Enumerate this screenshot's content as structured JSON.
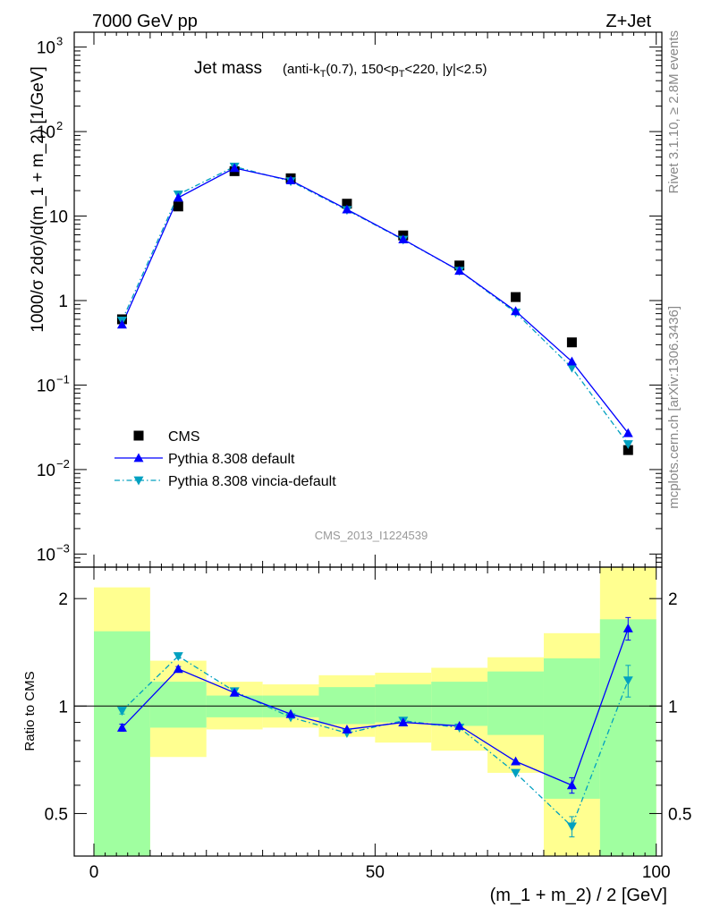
{
  "header": {
    "left": "7000 GeV pp",
    "right": "Z+Jet"
  },
  "side_text": {
    "rivet": "Rivet 3.1.10, ≥ 2.8M events",
    "mcplots": "mcplots.cern.ch [arXiv:1306.3436]"
  },
  "watermark": "CMS_2013_I1224539",
  "main_panel": {
    "title_main": "Jet mass",
    "title_sub": "(anti-k_T(0.7), 150<p_T<220, |y|<2.5)",
    "ylabel": "1000/σ 2dσ)/d(m_1 + m_2) [1/GeV]",
    "y_ticks": [
      {
        "value": 0.001,
        "label": "10",
        "exp": "−3"
      },
      {
        "value": 0.01,
        "label": "10",
        "exp": "−2"
      },
      {
        "value": 0.1,
        "label": "10",
        "exp": "−1"
      },
      {
        "value": 1,
        "label": "1",
        "exp": ""
      },
      {
        "value": 10,
        "label": "10",
        "exp": ""
      },
      {
        "value": 100,
        "label": "10",
        "exp": "2"
      },
      {
        "value": 1000,
        "label": "10",
        "exp": "3"
      }
    ]
  },
  "ratio_panel": {
    "ylabel": "Ratio to CMS",
    "y_ticks": [
      {
        "value": 0.5,
        "label": "0.5"
      },
      {
        "value": 1,
        "label": "1"
      },
      {
        "value": 2,
        "label": "2"
      }
    ]
  },
  "legend": [
    {
      "name": "CMS",
      "marker": "square",
      "color": "#000000"
    },
    {
      "name": "Pythia 8.308 default",
      "marker": "triangle-up",
      "color": "#0000ff"
    },
    {
      "name": "Pythia 8.308 vincia-default",
      "marker": "triangle-down",
      "color": "#00a0c0"
    }
  ],
  "chart_data": {
    "type": "line",
    "xlabel": "(m_1 + m_2) / 2 [GeV]",
    "xlim": [
      -3.5,
      101
    ],
    "x_ticks": [
      0,
      50,
      100
    ],
    "ylim": [
      0.0007,
      1500
    ],
    "yscale": "log",
    "ratio_ylim": [
      0.38,
      2.45
    ],
    "ratio_yscale": "log",
    "bin_edges": [
      0,
      10,
      20,
      30,
      40,
      50,
      60,
      70,
      80,
      90,
      100
    ],
    "x": [
      5,
      15,
      25,
      35,
      45,
      55,
      65,
      75,
      85,
      95
    ],
    "series": [
      {
        "name": "CMS",
        "values": [
          0.6,
          13.0,
          34.0,
          28.0,
          14.0,
          5.9,
          2.6,
          1.1,
          0.32,
          0.017
        ]
      },
      {
        "name": "Pythia 8.308 default",
        "values": [
          0.52,
          16.5,
          37.0,
          26.5,
          12.0,
          5.3,
          2.25,
          0.75,
          0.19,
          0.027
        ],
        "ratio": [
          0.87,
          1.27,
          1.09,
          0.95,
          0.86,
          0.9,
          0.88,
          0.7,
          0.6,
          1.65
        ],
        "ratio_err": [
          0.02,
          0.02,
          0.01,
          0.01,
          0.01,
          0.01,
          0.01,
          0.01,
          0.03,
          0.12
        ]
      },
      {
        "name": "Pythia 8.308 vincia-default",
        "values": [
          0.58,
          18.0,
          38.5,
          25.8,
          11.8,
          5.25,
          2.25,
          0.72,
          0.16,
          0.02
        ],
        "ratio": [
          0.97,
          1.38,
          1.1,
          0.93,
          0.84,
          0.91,
          0.87,
          0.65,
          0.46,
          1.18
        ],
        "ratio_err": [
          0.02,
          0.02,
          0.01,
          0.01,
          0.01,
          0.01,
          0.01,
          0.01,
          0.03,
          0.12
        ]
      }
    ],
    "uncertainty_bands": {
      "inner_green": [
        [
          0.38,
          1.62
        ],
        [
          0.87,
          1.17
        ],
        [
          0.93,
          1.07
        ],
        [
          0.93,
          1.07
        ],
        [
          0.89,
          1.13
        ],
        [
          0.9,
          1.15
        ],
        [
          0.88,
          1.17
        ],
        [
          0.83,
          1.25
        ],
        [
          0.55,
          1.36
        ],
        [
          0.38,
          1.75
        ]
      ],
      "outer_yellow": [
        [
          0.38,
          2.15
        ],
        [
          0.72,
          1.34
        ],
        [
          0.86,
          1.17
        ],
        [
          0.87,
          1.15
        ],
        [
          0.82,
          1.22
        ],
        [
          0.79,
          1.24
        ],
        [
          0.75,
          1.28
        ],
        [
          0.65,
          1.37
        ],
        [
          0.38,
          1.6
        ],
        [
          0.38,
          2.45
        ]
      ]
    },
    "colors": {
      "green": "#a0ffa0",
      "yellow": "#ffff90"
    }
  }
}
